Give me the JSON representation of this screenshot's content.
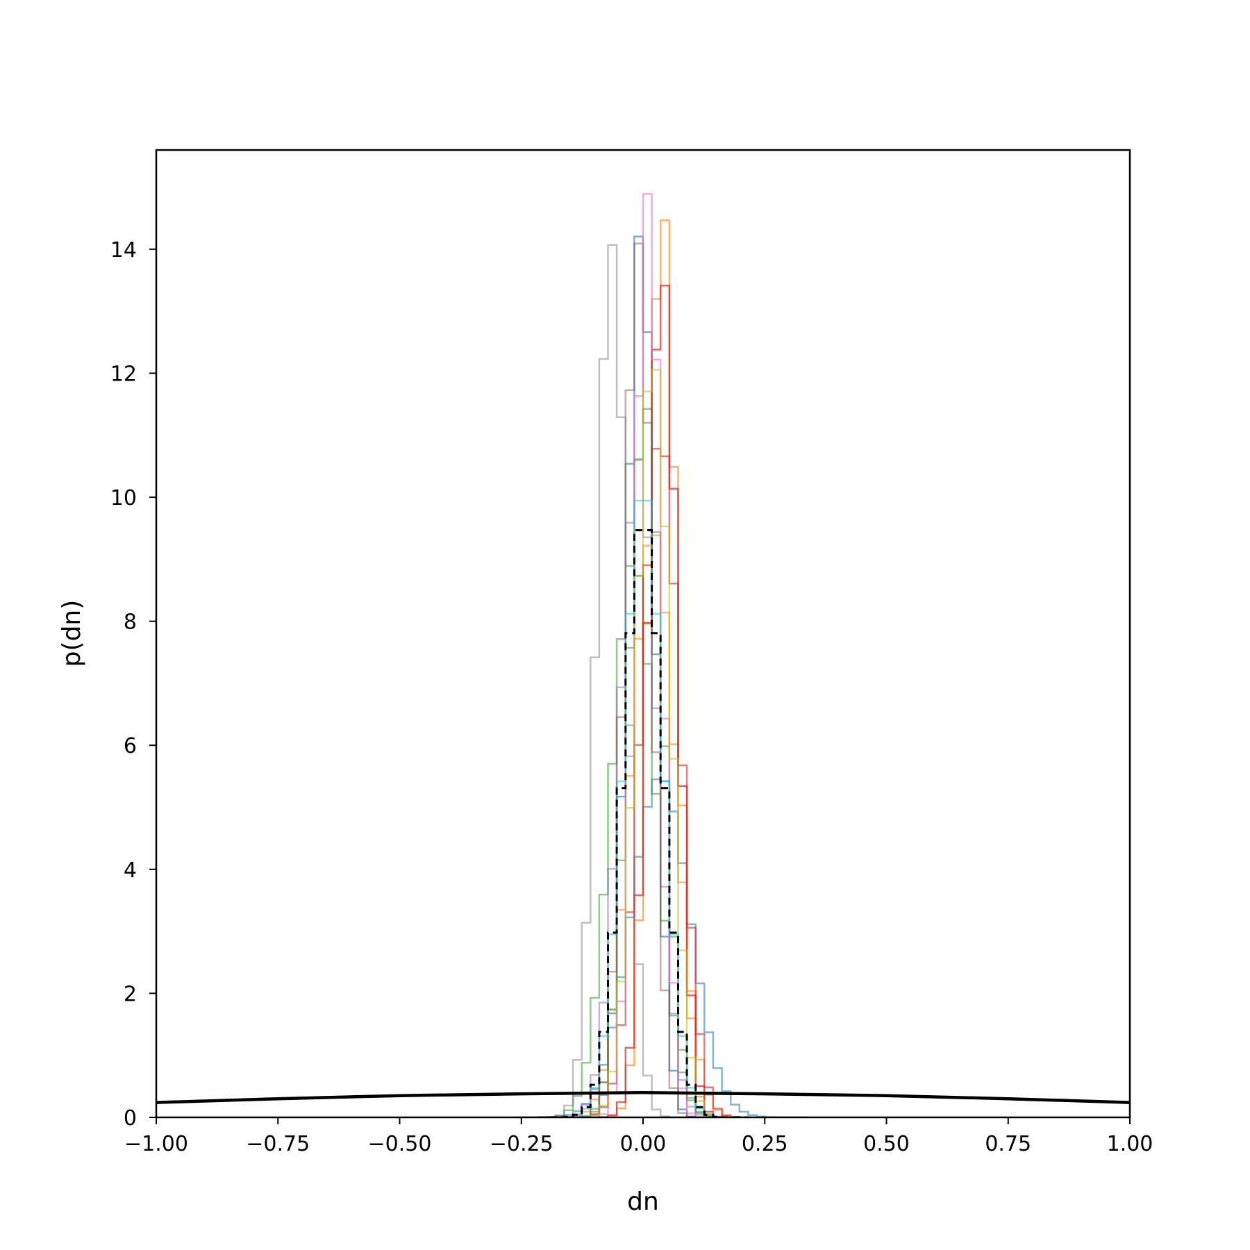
{
  "chart_data": {
    "type": "histogram",
    "xlabel": "dn",
    "ylabel": "p(dn)",
    "xlim": [
      -1.0,
      1.0
    ],
    "ylim": [
      0,
      15.6
    ],
    "xticks": [
      -1.0,
      -0.75,
      -0.5,
      -0.25,
      0.0,
      0.25,
      0.5,
      0.75,
      1.0
    ],
    "xtick_labels": [
      "−1.00",
      "−0.75",
      "−0.50",
      "−0.25",
      "0.00",
      "0.25",
      "0.50",
      "0.75",
      "1.00"
    ],
    "yticks": [
      0,
      2,
      4,
      6,
      8,
      10,
      12,
      14
    ],
    "ytick_labels": [
      "0",
      "2",
      "4",
      "6",
      "8",
      "10",
      "12",
      "14"
    ],
    "grid": false,
    "legend": "none",
    "series": [
      {
        "color": "#1f77b4",
        "mean": -0.005,
        "sd": 0.028,
        "peak": 14.35,
        "style": "step",
        "alpha": 0.6
      },
      {
        "color": "#1f77b4",
        "mean": 0.035,
        "sd": 0.06,
        "peak": 5.5,
        "style": "step",
        "alpha": 0.55
      },
      {
        "color": "#ff7f0e",
        "mean": 0.04,
        "sd": 0.028,
        "peak": 14.7,
        "style": "step",
        "alpha": 0.6
      },
      {
        "color": "#ff7f0e",
        "mean": 0.02,
        "sd": 0.045,
        "peak": 9.5,
        "style": "step",
        "alpha": 0.55
      },
      {
        "color": "#2ca02c",
        "mean": 0.005,
        "sd": 0.035,
        "peak": 11.5,
        "style": "step",
        "alpha": 0.55
      },
      {
        "color": "#2ca02c",
        "mean": -0.02,
        "sd": 0.045,
        "peak": 9.0,
        "style": "step",
        "alpha": 0.55
      },
      {
        "color": "#d62728",
        "mean": 0.04,
        "sd": 0.03,
        "peak": 13.6,
        "style": "step",
        "alpha": 0.7
      },
      {
        "color": "#d62728",
        "mean": 0.035,
        "sd": 0.04,
        "peak": 11.0,
        "style": "step",
        "alpha": 0.6
      },
      {
        "color": "#9467bd",
        "mean": -0.01,
        "sd": 0.038,
        "peak": 10.6,
        "style": "step",
        "alpha": 0.5
      },
      {
        "color": "#8c564b",
        "mean": -0.01,
        "sd": 0.028,
        "peak": 14.1,
        "style": "step",
        "alpha": 0.5
      },
      {
        "color": "#e377c2",
        "mean": 0.01,
        "sd": 0.027,
        "peak": 14.9,
        "style": "step",
        "alpha": 0.6
      },
      {
        "color": "#7f7f7f",
        "mean": -0.065,
        "sd": 0.03,
        "peak": 14.1,
        "style": "step",
        "alpha": 0.5
      },
      {
        "color": "#bcbd22",
        "mean": 0.02,
        "sd": 0.035,
        "peak": 12.3,
        "style": "step",
        "alpha": 0.55
      },
      {
        "color": "#17becf",
        "mean": 0.0,
        "sd": 0.04,
        "peak": 10.2,
        "style": "step",
        "alpha": 0.5
      },
      {
        "color": "#000000",
        "mean": 0.0,
        "sd": 0.041,
        "peak": 9.7,
        "style": "dashed-step",
        "alpha": 1.0
      }
    ],
    "prior_curve": {
      "color": "#000000",
      "x": [
        -1.0,
        -0.75,
        -0.5,
        -0.25,
        0.0,
        0.25,
        0.5,
        0.75,
        1.0
      ],
      "y": [
        0.24,
        0.3,
        0.35,
        0.38,
        0.4,
        0.38,
        0.35,
        0.3,
        0.24
      ]
    }
  }
}
